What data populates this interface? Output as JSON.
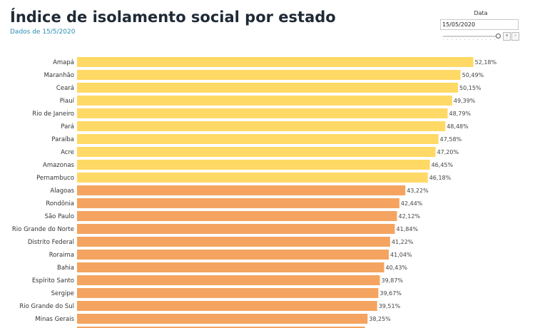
{
  "header": {
    "title": "Índice de isolamento social por estado",
    "subtitle": "Dados de 15/5/2020"
  },
  "filter": {
    "label": "Data",
    "value": "15/05/2020",
    "prev_icon": "chevron-left-icon",
    "next_icon": "chevron-right-icon",
    "prev_glyph": "‹",
    "next_glyph": "›"
  },
  "chart_data": {
    "type": "bar",
    "orientation": "horizontal",
    "title": "Índice de isolamento social por estado",
    "subtitle": "Dados de 15/5/2020",
    "xlabel": "",
    "ylabel": "",
    "grid": false,
    "legend": "none",
    "categories": [
      "Amapá",
      "Maranhão",
      "Ceará",
      "Piauí",
      "Rio de Janeiro",
      "Pará",
      "Paraíba",
      "Acre",
      "Amazonas",
      "Pernambuco",
      "Alagoas",
      "Rondônia",
      "São Paulo",
      "Rio Grande do Norte",
      "Distrito Federal",
      "Roraima",
      "Bahia",
      "Espírito Santo",
      "Sergipe",
      "Rio Grande do Sul",
      "Minas Gerais"
    ],
    "values": [
      52.18,
      50.49,
      50.15,
      49.39,
      48.79,
      48.48,
      47.58,
      47.2,
      46.45,
      46.18,
      43.22,
      42.44,
      42.12,
      41.84,
      41.22,
      41.04,
      40.43,
      39.87,
      39.67,
      39.51,
      38.25
    ],
    "value_labels": [
      "52,18%",
      "50,49%",
      "50,15%",
      "49,39%",
      "48,79%",
      "48,48%",
      "47,58%",
      "47,20%",
      "46,45%",
      "46,18%",
      "43,22%",
      "42,44%",
      "42,12%",
      "41,84%",
      "41,22%",
      "41,04%",
      "40,43%",
      "39,87%",
      "39,67%",
      "39,51%",
      "38,25%"
    ],
    "xlim": [
      0,
      54
    ],
    "colors": {
      "high": "#FFD966",
      "low": "#F4A460"
    },
    "high_count": 10
  }
}
